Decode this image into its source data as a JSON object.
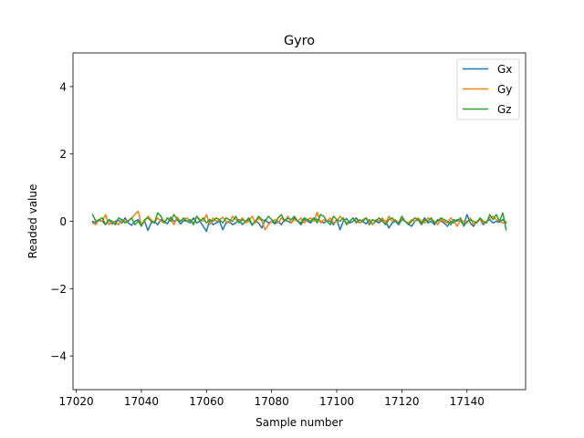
{
  "chart_data": {
    "type": "line",
    "title": "Gyro",
    "xlabel": "Sample number",
    "ylabel": "Readed value",
    "xlim": [
      17019,
      17158
    ],
    "ylim": [
      -5,
      5
    ],
    "xticks": [
      17020,
      17040,
      17060,
      17080,
      17100,
      17120,
      17140
    ],
    "yticks": [
      -4,
      -2,
      0,
      2,
      4
    ],
    "grid": false,
    "legend_position": "top-right",
    "x_start": 17025,
    "x_step": 1,
    "series": [
      {
        "name": "Gx",
        "color": "#1f77b4",
        "values": [
          0.0,
          -0.05,
          0.02,
          0.0,
          -0.1,
          0.05,
          -0.08,
          0.0,
          0.03,
          -0.05,
          0.1,
          -0.05,
          -0.12,
          0.0,
          0.05,
          -0.08,
          0.0,
          -0.27,
          -0.05,
          0.0,
          -0.1,
          0.05,
          0.0,
          -0.08,
          0.12,
          0.0,
          0.05,
          -0.08,
          0.02,
          0.0,
          -0.05,
          0.1,
          -0.05,
          0.0,
          -0.15,
          -0.3,
          0.05,
          -0.1,
          -0.05,
          0.0,
          -0.25,
          -0.05,
          0.0,
          -0.1,
          -0.05,
          0.05,
          -0.1,
          0.0,
          0.05,
          -0.12,
          0.0,
          -0.05,
          -0.2,
          0.05,
          -0.05,
          0.0,
          -0.08,
          0.0,
          -0.1,
          0.05,
          0.0,
          -0.05,
          0.1,
          0.0,
          -0.1,
          0.05,
          0.0,
          -0.05,
          0.1,
          0.05,
          0.0,
          -0.05,
          0.02,
          0.0,
          -0.1,
          0.05,
          -0.25,
          0.0,
          0.08,
          -0.05,
          0.0,
          0.1,
          -0.05,
          0.0,
          -0.08,
          0.05,
          -0.1,
          0.0,
          -0.05,
          0.05,
          0.0,
          -0.2,
          -0.05,
          0.0,
          -0.1,
          0.05,
          0.0,
          -0.08,
          -0.15,
          0.0,
          0.05,
          -0.05,
          0.1,
          -0.05,
          0.0,
          -0.1,
          0.05,
          0.0,
          -0.05,
          -0.15,
          0.0,
          -0.05,
          0.05,
          0.0,
          -0.1,
          0.2,
          -0.05,
          -0.15,
          0.0,
          0.05,
          -0.1,
          0.0,
          0.05,
          -0.05,
          0.0,
          -0.03,
          0.05,
          -0.05
        ],
        "_note": ""
      },
      {
        "name": "Gy",
        "color": "#ff7f0e",
        "values": [
          -0.05,
          -0.1,
          0.05,
          0.0,
          0.2,
          -0.1,
          0.0,
          -0.05,
          -0.1,
          0.05,
          0.0,
          0.02,
          0.1,
          0.2,
          0.3,
          -0.1,
          0.0,
          0.15,
          0.05,
          -0.05,
          0.1,
          0.0,
          -0.05,
          0.1,
          0.05,
          -0.1,
          0.12,
          0.0,
          0.05,
          0.1,
          0.0,
          -0.05,
          0.15,
          0.05,
          0.0,
          0.2,
          -0.1,
          0.1,
          0.0,
          0.05,
          0.12,
          0.0,
          -0.05,
          0.15,
          0.05,
          0.0,
          0.1,
          -0.05,
          0.0,
          0.15,
          -0.05,
          0.1,
          0.0,
          -0.25,
          -0.1,
          0.0,
          0.05,
          -0.05,
          0.1,
          0.0,
          0.15,
          -0.05,
          0.05,
          0.0,
          0.1,
          -0.05,
          0.05,
          0.1,
          0.0,
          0.27,
          -0.05,
          0.05,
          0.0,
          0.1,
          -0.05,
          0.0,
          0.15,
          0.05,
          -0.05,
          0.0,
          0.1,
          0.0,
          -0.05,
          0.05,
          0.1,
          0.0,
          -0.1,
          0.05,
          0.0,
          0.1,
          -0.05,
          0.15,
          0.0,
          0.05,
          -0.05,
          0.1,
          0.0,
          -0.05,
          0.05,
          0.0,
          0.1,
          0.0,
          -0.05,
          0.1,
          0.05,
          0.0,
          -0.1,
          0.05,
          0.0,
          -0.05,
          0.1,
          0.0,
          -0.15,
          0.05,
          0.0,
          -0.05,
          0.1,
          -0.1,
          0.0,
          0.05,
          -0.05,
          0.0,
          0.1,
          0.15,
          0.05,
          0.0,
          -0.05,
          0.0
        ],
        "_note": ""
      },
      {
        "name": "Gz",
        "color": "#2ca02c",
        "values": [
          0.2,
          0.0,
          0.05,
          0.1,
          -0.1,
          0.05,
          0.0,
          -0.1,
          0.1,
          0.05,
          -0.05,
          0.0,
          0.1,
          -0.1,
          0.0,
          -0.15,
          0.05,
          0.1,
          0.0,
          -0.05,
          0.25,
          0.15,
          -0.05,
          0.1,
          0.0,
          0.2,
          0.05,
          0.0,
          0.1,
          0.0,
          0.05,
          -0.1,
          0.15,
          0.0,
          0.1,
          -0.05,
          0.05,
          0.0,
          0.1,
          0.05,
          -0.05,
          0.1,
          0.05,
          0.0,
          0.15,
          -0.05,
          0.05,
          0.0,
          0.1,
          -0.1,
          0.0,
          0.15,
          0.05,
          0.0,
          0.15,
          0.05,
          -0.05,
          0.1,
          0.2,
          0.0,
          0.1,
          0.05,
          0.15,
          0.0,
          -0.05,
          0.1,
          0.05,
          0.0,
          0.1,
          -0.05,
          0.2,
          0.15,
          0.0,
          -0.1,
          0.15,
          0.05,
          0.0,
          0.1,
          -0.1,
          0.0,
          0.1,
          -0.05,
          0.05,
          0.0,
          0.1,
          -0.1,
          0.05,
          0.0,
          0.1,
          0.0,
          -0.1,
          0.05,
          0.1,
          0.0,
          -0.05,
          0.15,
          0.0,
          -0.1,
          0.0,
          0.1,
          0.05,
          -0.1,
          0.05,
          0.0,
          0.1,
          -0.05,
          0.0,
          0.1,
          0.05,
          0.0,
          -0.1,
          0.05,
          0.0,
          0.1,
          -0.15,
          0.0,
          0.05,
          0.0,
          -0.05,
          0.1,
          0.0,
          -0.05,
          0.2,
          0.05,
          0.2,
          0.0,
          0.25,
          -0.25
        ],
        "_note": ""
      }
    ]
  }
}
